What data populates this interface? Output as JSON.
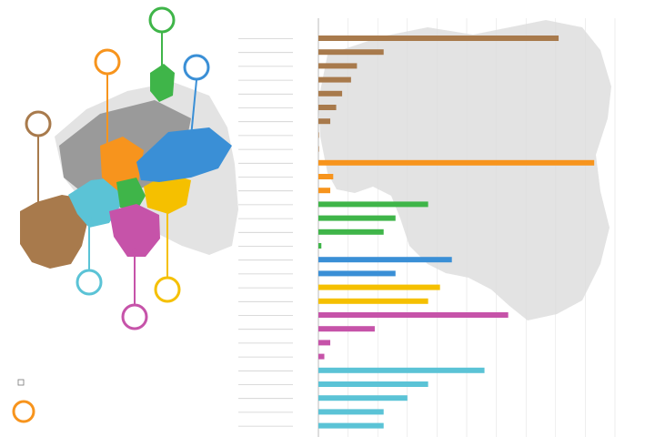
{
  "chart_data": {
    "type": "bar",
    "title": "",
    "orientation": "horizontal",
    "xlim": [
      0,
      100
    ],
    "grid": true,
    "colors": {
      "brown": "#a87a4c",
      "orange": "#f7941d",
      "green": "#3fb549",
      "blue": "#3a8fd6",
      "yellow": "#f5c000",
      "magenta": "#c653a9",
      "cyan": "#5bc3d6",
      "map": "#dcdcdc",
      "map_highlight": "#bdbdbd",
      "gray_region": "#8a8a8a",
      "grid": "#dddddd"
    },
    "rows": [
      {
        "label": "",
        "value": 81,
        "group": "brown"
      },
      {
        "label": "",
        "value": 22,
        "group": "brown"
      },
      {
        "label": "",
        "value": 13,
        "group": "brown"
      },
      {
        "label": "",
        "value": 11,
        "group": "brown"
      },
      {
        "label": "",
        "value": 8,
        "group": "brown"
      },
      {
        "label": "",
        "value": 6,
        "group": "brown"
      },
      {
        "label": "",
        "value": 4,
        "group": "brown"
      },
      {
        "label": "",
        "value": 0,
        "group": "brown"
      },
      {
        "label": "",
        "value": 0,
        "group": "brown"
      },
      {
        "label": "",
        "value": 93,
        "group": "orange"
      },
      {
        "label": "",
        "value": 5,
        "group": "orange"
      },
      {
        "label": "",
        "value": 4,
        "group": "orange"
      },
      {
        "label": "",
        "value": 37,
        "group": "green"
      },
      {
        "label": "",
        "value": 26,
        "group": "green"
      },
      {
        "label": "",
        "value": 22,
        "group": "green"
      },
      {
        "label": "",
        "value": 1,
        "group": "green"
      },
      {
        "label": "",
        "value": 45,
        "group": "blue"
      },
      {
        "label": "",
        "value": 26,
        "group": "blue"
      },
      {
        "label": "",
        "value": 41,
        "group": "yellow"
      },
      {
        "label": "",
        "value": 37,
        "group": "yellow"
      },
      {
        "label": "",
        "value": 64,
        "group": "magenta"
      },
      {
        "label": "",
        "value": 19,
        "group": "magenta"
      },
      {
        "label": "",
        "value": 4,
        "group": "magenta"
      },
      {
        "label": "",
        "value": 2,
        "group": "magenta"
      },
      {
        "label": "",
        "value": 56,
        "group": "cyan"
      },
      {
        "label": "",
        "value": 37,
        "group": "cyan"
      },
      {
        "label": "",
        "value": 30,
        "group": "cyan"
      },
      {
        "label": "",
        "value": 22,
        "group": "cyan"
      },
      {
        "label": "",
        "value": 22,
        "group": "cyan"
      }
    ],
    "callouts": [
      {
        "group": "green",
        "num": "",
        "pct": ""
      },
      {
        "group": "orange",
        "num": "",
        "pct": ""
      },
      {
        "group": "blue",
        "num": "",
        "pct": ""
      },
      {
        "group": "brown",
        "num": "",
        "pct": ""
      },
      {
        "group": "cyan",
        "num": "",
        "pct": ""
      },
      {
        "group": "magenta",
        "num": "",
        "pct": ""
      },
      {
        "group": "yellow",
        "num": "",
        "pct": ""
      }
    ],
    "legend": [
      {
        "text": ""
      },
      {
        "text": ""
      }
    ]
  }
}
